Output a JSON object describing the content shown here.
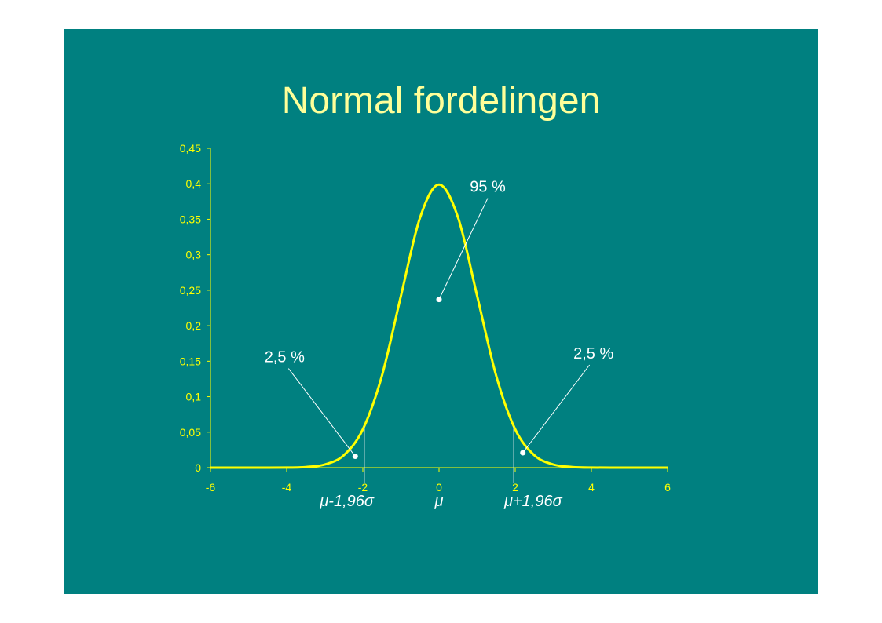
{
  "slide": {
    "title": "Normal fordelingen",
    "background": "#008080",
    "title_color": "#ffff99"
  },
  "chart_data": {
    "type": "line",
    "title": "",
    "xlabel": "",
    "ylabel": "",
    "xlim": [
      -6,
      6
    ],
    "ylim": [
      0,
      0.45
    ],
    "x_ticks": [
      "-6",
      "-4",
      "-2",
      "0",
      "2",
      "4",
      "6"
    ],
    "y_ticks": [
      "0",
      "0,05",
      "0,1",
      "0,15",
      "0,2",
      "0,25",
      "0,3",
      "0,35",
      "0,4",
      "0,45"
    ],
    "grid": false,
    "series": [
      {
        "color": "#ffff00",
        "x": [
          -6,
          -5.5,
          -5,
          -4.5,
          -4,
          -3.5,
          -3,
          -2.5,
          -2,
          -1.5,
          -1,
          -0.5,
          0,
          0.5,
          1,
          1.5,
          2,
          2.5,
          3,
          3.5,
          4,
          4.5,
          5,
          5.5,
          6
        ],
        "y": [
          0,
          0,
          0,
          0,
          0.0001,
          0.0009,
          0.0044,
          0.0175,
          0.054,
          0.1295,
          0.242,
          0.3521,
          0.3989,
          0.3521,
          0.242,
          0.1295,
          0.054,
          0.0175,
          0.0044,
          0.0009,
          0.0001,
          0,
          0,
          0,
          0
        ]
      }
    ],
    "cutoffs": [
      -1.96,
      1.96
    ],
    "annotations": [
      {
        "text": "95 %",
        "point": [
          0,
          0.237
        ]
      },
      {
        "text": "2,5 %",
        "point": [
          -2.2,
          0.016
        ]
      },
      {
        "text": "2,5 %",
        "point": [
          2.2,
          0.021
        ]
      }
    ],
    "markers": [
      {
        "text": "μ-1,96σ"
      },
      {
        "text": "μ"
      },
      {
        "text": "μ+1,96σ"
      }
    ],
    "axis_color": "#ffff00",
    "annotation_color": "#ffffff"
  }
}
